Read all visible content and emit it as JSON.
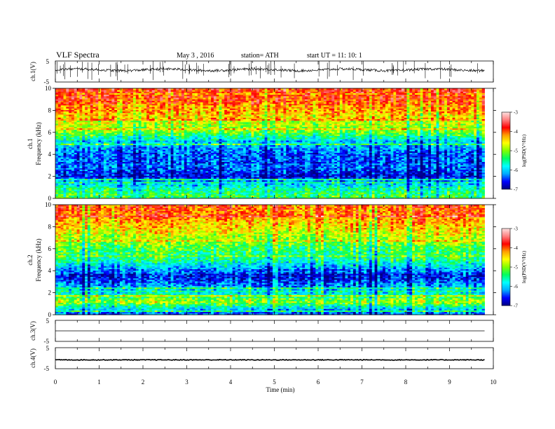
{
  "header": {
    "title": "VLF  Spectra",
    "date": "May 3   , 2016",
    "station": "station= ATH",
    "start": "start  UT  =    11: 10: 1"
  },
  "colorbar": {
    "label": "log(PSD(V²/Hz)",
    "ticks": [
      "-3",
      "-4",
      "-5",
      "-6",
      "-7"
    ],
    "colors": [
      "#000080",
      "#0000ff",
      "#00aaff",
      "#00ffff",
      "#00ff60",
      "#80ff00",
      "#ffff00",
      "#ffa000",
      "#ff0000",
      "#ff8080",
      "#ffe0e0"
    ]
  },
  "chart_data": [
    {
      "name": "ch1-waveform",
      "type": "line",
      "ylabel": "ch.1(V)",
      "ylim": [
        -5,
        5
      ],
      "yticks": [
        "5",
        "-5"
      ],
      "x_range": [
        0,
        9.8
      ],
      "approx_level": 0.8,
      "approx_noise_amplitude": 1.2
    },
    {
      "name": "ch1-spectrogram",
      "type": "heatmap",
      "ylabel_top": "ch.1",
      "ylabel": "Frequency  (kHz)",
      "ylim": [
        0,
        10
      ],
      "yticks": [
        "0",
        "2",
        "4",
        "6",
        "8",
        "10"
      ],
      "x_range": [
        0,
        9.8
      ],
      "zlim": [
        -7,
        -3
      ],
      "psd_profile": [
        {
          "f": 0.3,
          "z": -5.3
        },
        {
          "f": 1.0,
          "z": -5.6
        },
        {
          "f": 2.0,
          "z": -6.7
        },
        {
          "f": 3.0,
          "z": -6.3
        },
        {
          "f": 4.0,
          "z": -6.4
        },
        {
          "f": 5.0,
          "z": -6.0
        },
        {
          "f": 6.0,
          "z": -5.1
        },
        {
          "f": 7.0,
          "z": -4.7
        },
        {
          "f": 8.0,
          "z": -4.2
        },
        {
          "f": 9.0,
          "z": -3.9
        },
        {
          "f": 10.0,
          "z": -3.8
        }
      ]
    },
    {
      "name": "ch2-spectrogram",
      "type": "heatmap",
      "ylabel_top": "ch.2",
      "ylabel": "Frequency  (kHz)",
      "ylim": [
        0,
        10
      ],
      "yticks": [
        "0",
        "2",
        "4",
        "6",
        "8",
        "10"
      ],
      "x_range": [
        0,
        9.8
      ],
      "zlim": [
        -7,
        -3
      ],
      "psd_profile": [
        {
          "f": 0.3,
          "z": -6.3
        },
        {
          "f": 1.2,
          "z": -4.8
        },
        {
          "f": 2.0,
          "z": -5.8
        },
        {
          "f": 3.5,
          "z": -6.6
        },
        {
          "f": 4.3,
          "z": -6.0
        },
        {
          "f": 5.0,
          "z": -5.5
        },
        {
          "f": 6.0,
          "z": -5.2
        },
        {
          "f": 7.0,
          "z": -4.8
        },
        {
          "f": 8.0,
          "z": -4.4
        },
        {
          "f": 9.0,
          "z": -4.1
        },
        {
          "f": 10.0,
          "z": -3.9
        }
      ]
    },
    {
      "name": "ch3-waveform",
      "type": "line",
      "ylabel": "ch.3(V)",
      "ylim": [
        -5,
        5
      ],
      "yticks": [
        "5",
        "-5"
      ],
      "x_range": [
        0,
        9.8
      ],
      "approx_level": 0.0
    },
    {
      "name": "ch4-waveform",
      "type": "line",
      "ylabel": "ch.4(V)",
      "ylim": [
        -5,
        5
      ],
      "yticks": [
        "5",
        "-5"
      ],
      "x_range": [
        0,
        9.8
      ],
      "approx_level": -0.8,
      "approx_noise_amplitude": 0.35
    }
  ],
  "xaxis": {
    "label": "Time  (min)",
    "xlim": [
      0,
      10
    ],
    "ticks": [
      "0",
      "1",
      "2",
      "3",
      "4",
      "5",
      "6",
      "7",
      "8",
      "9",
      "10"
    ]
  }
}
